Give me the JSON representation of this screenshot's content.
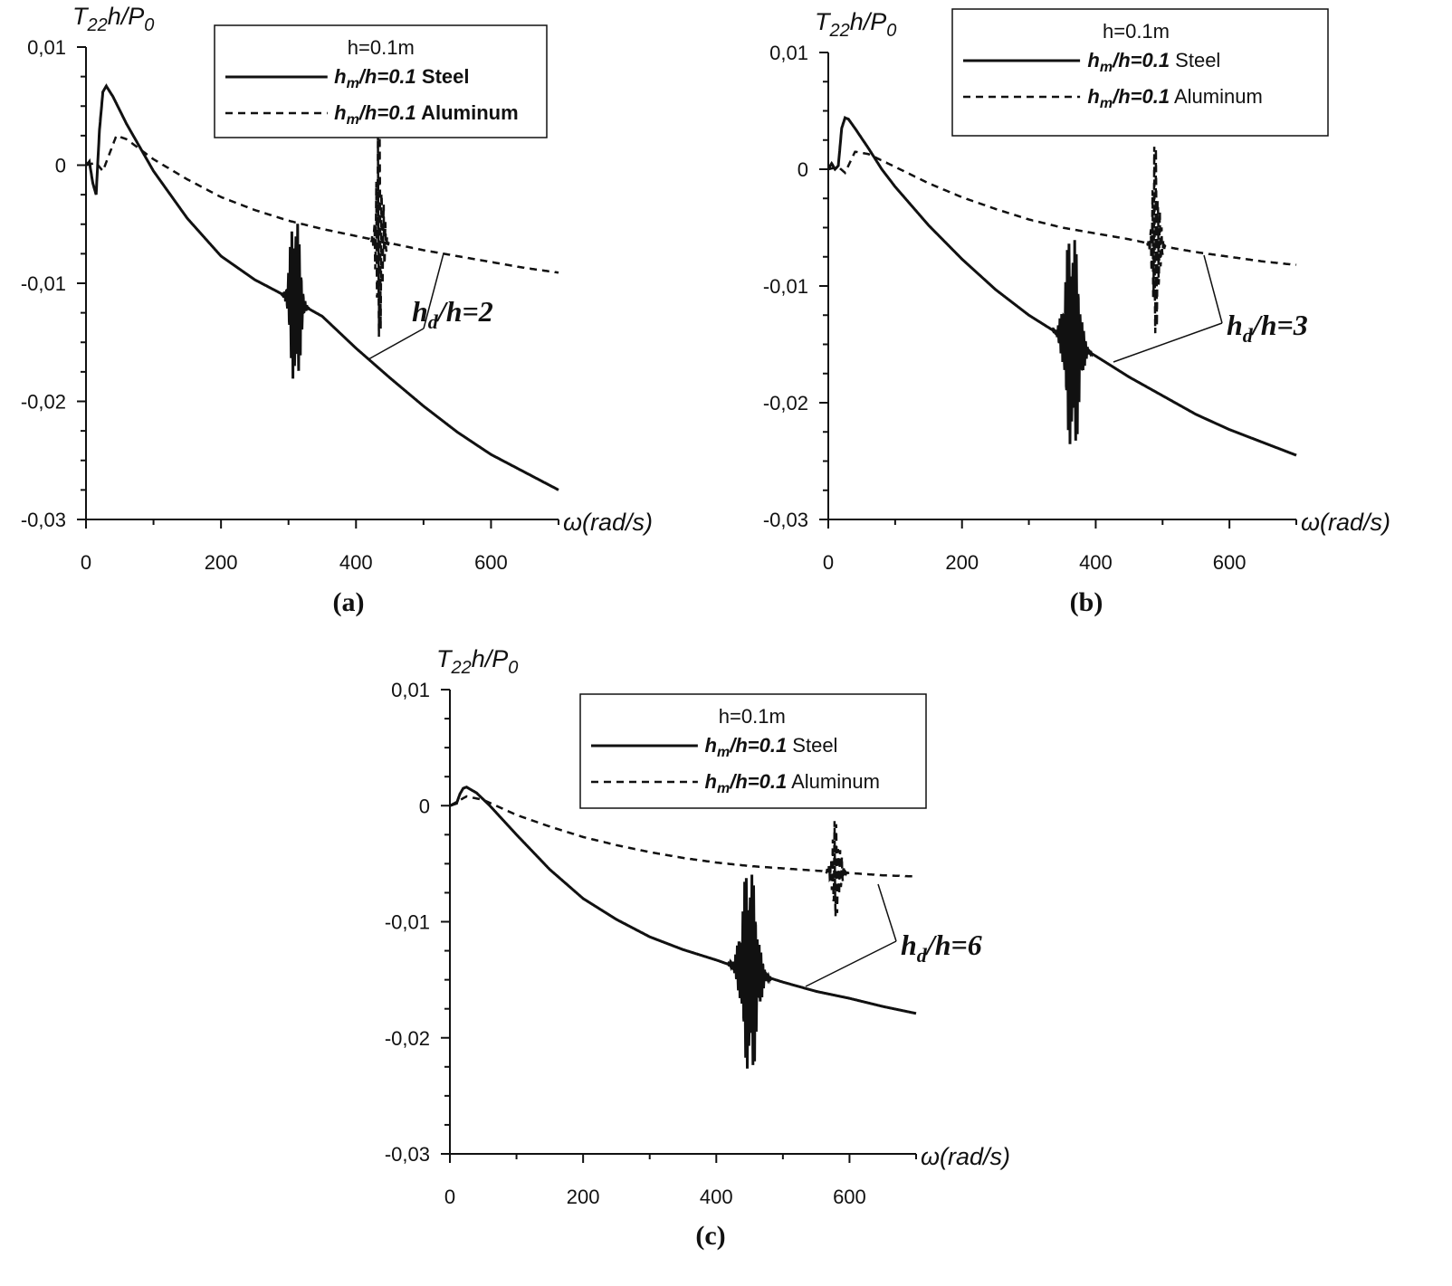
{
  "chart_data": [
    {
      "id": "a",
      "type": "line",
      "caption": "(a)",
      "ylabel": "T22h/P0",
      "xlabel": "ω(rad/s)",
      "xlim": [
        0,
        700
      ],
      "ylim": [
        -0.03,
        0.01
      ],
      "xticks": [
        "0",
        "200",
        "400",
        "600"
      ],
      "yticks": [
        "0,01",
        "0",
        "-0,01",
        "-0,02",
        "-0,03"
      ],
      "legend": {
        "title": "h=0.1m",
        "position": "top-right",
        "entries": [
          {
            "ratio": "hm/h=0.1",
            "material": "Steel",
            "style": "solid"
          },
          {
            "ratio": "hm/h=0.1",
            "material": "Aluminum",
            "style": "dashed"
          }
        ]
      },
      "annotation": "hd/h=2",
      "series": [
        {
          "name": "hm/h=0.1 Steel",
          "style": "solid",
          "x": [
            0,
            5,
            10,
            15,
            20,
            25,
            30,
            40,
            60,
            80,
            100,
            150,
            200,
            250,
            300,
            350,
            400,
            450,
            500,
            550,
            600,
            650,
            700
          ],
          "y": [
            0,
            0.0003,
            -0.0015,
            -0.0025,
            0.003,
            0.0062,
            0.0067,
            0.0058,
            0.0035,
            0.0015,
            -0.0005,
            -0.0045,
            -0.0077,
            -0.0097,
            -0.0112,
            -0.0128,
            -0.0155,
            -0.018,
            -0.0204,
            -0.0226,
            -0.0245,
            -0.026,
            -0.0275
          ],
          "resonance": {
            "center": 310,
            "width": 14,
            "amplitude": 0.0065
          }
        },
        {
          "name": "hm/h=0.1 Aluminum",
          "style": "dashed",
          "x": [
            0,
            15,
            25,
            45,
            60,
            100,
            150,
            200,
            250,
            300,
            350,
            400,
            450,
            500,
            550,
            600,
            650,
            700
          ],
          "y": [
            0,
            0.0002,
            -0.0005,
            0.0025,
            0.0022,
            0.0005,
            -0.0012,
            -0.0027,
            -0.0038,
            -0.0047,
            -0.0054,
            -0.006,
            -0.0066,
            -0.0072,
            -0.0077,
            -0.0082,
            -0.0087,
            -0.0091
          ],
          "resonance": {
            "center": 435,
            "width": 10,
            "amplitude": 0.0075
          }
        }
      ]
    },
    {
      "id": "b",
      "type": "line",
      "caption": "(b)",
      "ylabel": "T22h/P0",
      "xlabel": "ω(rad/s)",
      "xlim": [
        0,
        700
      ],
      "ylim": [
        -0.03,
        0.01
      ],
      "xticks": [
        "0",
        "200",
        "400",
        "600"
      ],
      "yticks": [
        "0,01",
        "0",
        "-0,01",
        "-0,02",
        "-0,03"
      ],
      "legend": {
        "title": "h=0.1m",
        "position": "top-right",
        "entries": [
          {
            "ratio": "hm/h=0.1",
            "material": "Steel",
            "style": "solid"
          },
          {
            "ratio": "hm/h=0.1",
            "material": "Aluminum",
            "style": "dashed"
          }
        ]
      },
      "annotation": "hd/h=3",
      "series": [
        {
          "name": "hm/h=0.1 Steel",
          "style": "solid",
          "x": [
            0,
            5,
            10,
            15,
            20,
            25,
            30,
            40,
            60,
            80,
            100,
            150,
            200,
            250,
            300,
            350,
            400,
            450,
            500,
            550,
            600,
            650,
            700
          ],
          "y": [
            0,
            0.0005,
            0.0,
            0.0003,
            0.0035,
            0.0044,
            0.0043,
            0.0035,
            0.0018,
            0.0,
            -0.0015,
            -0.0048,
            -0.0077,
            -0.0103,
            -0.0125,
            -0.0143,
            -0.016,
            -0.0178,
            -0.0194,
            -0.021,
            -0.0223,
            -0.0234,
            -0.0245
          ],
          "resonance": {
            "center": 365,
            "width": 20,
            "amplitude": 0.008
          }
        },
        {
          "name": "hm/h=0.1 Aluminum",
          "style": "dashed",
          "x": [
            0,
            15,
            25,
            40,
            60,
            100,
            150,
            200,
            250,
            300,
            350,
            400,
            450,
            500,
            550,
            600,
            650,
            700
          ],
          "y": [
            0,
            0.0002,
            -0.0003,
            0.0015,
            0.0013,
            0.0002,
            -0.0012,
            -0.0024,
            -0.0034,
            -0.0043,
            -0.005,
            -0.0055,
            -0.006,
            -0.0066,
            -0.0071,
            -0.0075,
            -0.0079,
            -0.0082
          ],
          "resonance": {
            "center": 490,
            "width": 10,
            "amplitude": 0.007
          }
        }
      ]
    },
    {
      "id": "c",
      "type": "line",
      "caption": "(c)",
      "ylabel": "T22h/P0",
      "xlabel": "ω(rad/s)",
      "xlim": [
        0,
        700
      ],
      "ylim": [
        -0.03,
        0.01
      ],
      "xticks": [
        "0",
        "200",
        "400",
        "600"
      ],
      "yticks": [
        "0,01",
        "0",
        "-0,01",
        "-0,02",
        "-0,03"
      ],
      "legend": {
        "title": "h=0.1m",
        "position": "top-right",
        "entries": [
          {
            "ratio": "hm/h=0.1",
            "material": "Steel",
            "style": "solid"
          },
          {
            "ratio": "hm/h=0.1",
            "material": "Aluminum",
            "style": "dashed"
          }
        ]
      },
      "annotation": "hd/h=6",
      "series": [
        {
          "name": "hm/h=0.1 Steel",
          "style": "solid",
          "x": [
            0,
            10,
            15,
            20,
            25,
            40,
            60,
            100,
            150,
            200,
            250,
            300,
            350,
            400,
            450,
            500,
            550,
            600,
            650,
            700
          ],
          "y": [
            0,
            0.0002,
            0.001,
            0.0015,
            0.0016,
            0.0011,
            0.0,
            -0.0025,
            -0.0055,
            -0.008,
            -0.0098,
            -0.0113,
            -0.0124,
            -0.0133,
            -0.0143,
            -0.0152,
            -0.016,
            -0.0166,
            -0.0173,
            -0.0179
          ],
          "resonance": {
            "center": 450,
            "width": 22,
            "amplitude": 0.0075
          }
        },
        {
          "name": "hm/h=0.1 Aluminum",
          "style": "dashed",
          "x": [
            0,
            25,
            50,
            100,
            150,
            200,
            250,
            300,
            350,
            400,
            450,
            500,
            550,
            600,
            650,
            700
          ],
          "y": [
            0,
            0.0008,
            0.0005,
            -0.0008,
            -0.0018,
            -0.0027,
            -0.0034,
            -0.004,
            -0.0045,
            -0.0049,
            -0.0052,
            -0.0054,
            -0.0056,
            -0.0058,
            -0.006,
            -0.0061
          ],
          "resonance": {
            "center": 580,
            "width": 12,
            "amplitude": 0.0035
          }
        }
      ]
    }
  ]
}
